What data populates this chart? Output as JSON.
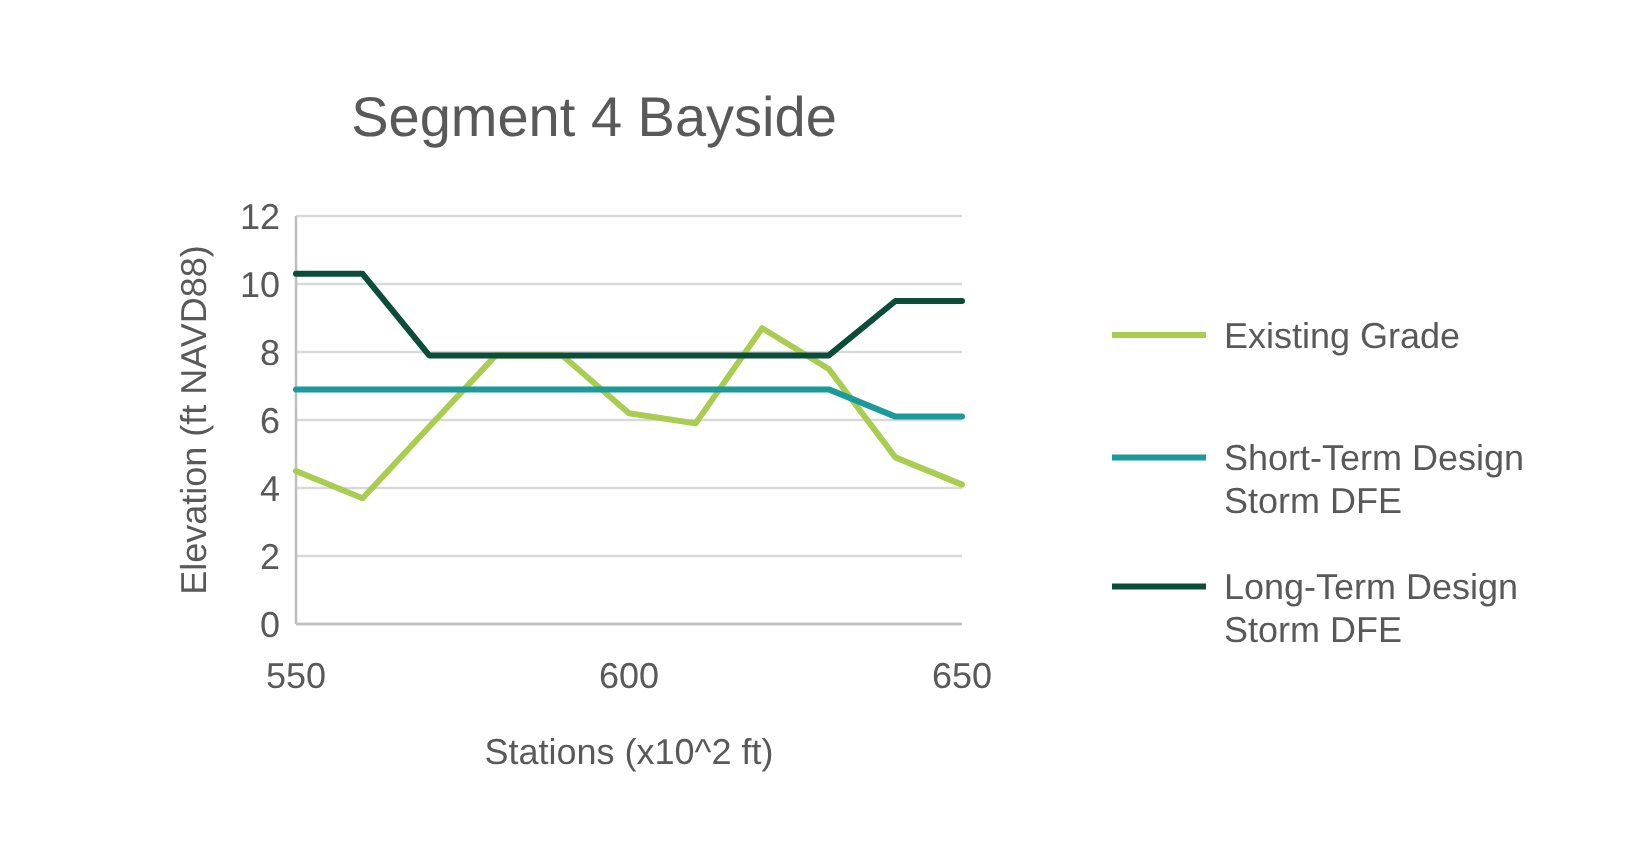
{
  "chart_data": {
    "type": "line",
    "title": "Segment 4 Bayside",
    "xlabel": "Stations (x10^2 ft)",
    "ylabel": "Elevation (ft NAVD88)",
    "x": [
      550,
      560,
      570,
      580,
      590,
      600,
      610,
      620,
      630,
      640,
      650
    ],
    "series": [
      {
        "name": "Existing Grade",
        "color": "#a9cd50",
        "values": [
          4.5,
          3.7,
          5.8,
          7.9,
          7.9,
          6.2,
          5.9,
          8.7,
          7.5,
          4.9,
          4.1
        ]
      },
      {
        "name": "Short-Term Design Storm DFE",
        "color": "#1a9a9a",
        "values": [
          6.9,
          6.9,
          6.9,
          6.9,
          6.9,
          6.9,
          6.9,
          6.9,
          6.9,
          6.1,
          6.1
        ]
      },
      {
        "name": "Long-Term Design Storm DFE",
        "color": "#0b4d3a",
        "values": [
          10.3,
          10.3,
          7.9,
          7.9,
          7.9,
          7.9,
          7.9,
          7.9,
          7.9,
          9.5,
          9.5
        ]
      }
    ],
    "xlim": [
      550,
      650
    ],
    "xticks": [
      550,
      600,
      650
    ],
    "ylim": [
      0,
      12
    ],
    "yticks": [
      0,
      2,
      4,
      6,
      8,
      10,
      12
    ],
    "grid": "y",
    "legend": "right",
    "marker": "none",
    "line_style": "solid"
  }
}
